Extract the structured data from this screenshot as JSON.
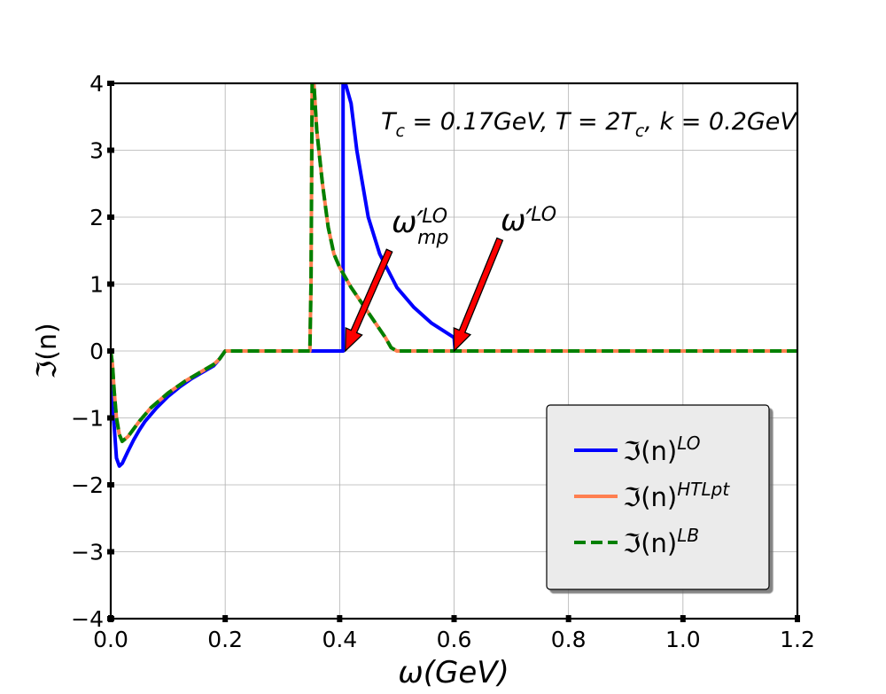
{
  "chart_data": {
    "type": "line",
    "xlabel": "ω(GeV)",
    "ylabel": "ℑ(n)",
    "xlim": [
      0.0,
      1.2
    ],
    "ylim": [
      -4,
      4
    ],
    "grid": true,
    "legend_position": "lower-right",
    "x_ticks": [
      "0.0",
      "0.2",
      "0.4",
      "0.6",
      "0.8",
      "1.0",
      "1.2"
    ],
    "y_ticks": [
      "−4",
      "−3",
      "−2",
      "−1",
      "0",
      "1",
      "2",
      "3",
      "4"
    ],
    "annotation_text": {
      "base": "T",
      "sub": "c",
      "rest1": " = 0.17GeV, T = 2T",
      "sub2": "c",
      "rest2": ", k = 0.2GeV"
    },
    "arrows": [
      {
        "label": "ω′",
        "sup": "LO",
        "sub": "mp",
        "tail": [
          0.487,
          1.5
        ],
        "head": [
          0.41,
          0.0
        ]
      },
      {
        "label": "ω′",
        "sup": "LO",
        "sub": "",
        "tail": [
          0.68,
          1.67
        ],
        "head": [
          0.6,
          0.0
        ]
      }
    ],
    "series": [
      {
        "name_base": "ℑ(n)",
        "name_sup": "LO",
        "color": "#0000ff",
        "dash": "solid",
        "x": [
          0.0,
          0.002,
          0.005,
          0.01,
          0.015,
          0.02,
          0.03,
          0.04,
          0.05,
          0.06,
          0.08,
          0.1,
          0.12,
          0.14,
          0.16,
          0.18,
          0.19,
          0.2,
          0.25,
          0.3,
          0.35,
          0.4,
          0.406,
          0.406,
          0.407,
          0.41,
          0.42,
          0.43,
          0.45,
          0.47,
          0.5,
          0.53,
          0.56,
          0.6,
          0.602,
          0.7,
          0.8,
          0.9,
          1.0,
          1.1,
          1.2
        ],
        "y": [
          0.0,
          -0.3,
          -1.0,
          -1.6,
          -1.72,
          -1.68,
          -1.5,
          -1.33,
          -1.18,
          -1.05,
          -0.85,
          -0.68,
          -0.54,
          -0.42,
          -0.32,
          -0.22,
          -0.12,
          0.0,
          0.0,
          0.0,
          0.0,
          0.0,
          0.0,
          4.0,
          4.0,
          4.0,
          3.7,
          3.0,
          2.0,
          1.45,
          0.95,
          0.65,
          0.42,
          0.2,
          0.0,
          0.0,
          0.0,
          0.0,
          0.0,
          0.0,
          0.0
        ]
      },
      {
        "name_base": "ℑ(n)",
        "name_sup": "HTLpt",
        "color": "#ff7f50",
        "dash": "solid",
        "x": [
          0.0,
          0.003,
          0.006,
          0.01,
          0.015,
          0.02,
          0.03,
          0.05,
          0.07,
          0.1,
          0.13,
          0.16,
          0.18,
          0.19,
          0.2,
          0.25,
          0.3,
          0.348,
          0.35,
          0.352,
          0.355,
          0.36,
          0.365,
          0.37,
          0.38,
          0.39,
          0.4,
          0.42,
          0.44,
          0.46,
          0.48,
          0.49,
          0.5,
          0.6,
          0.8,
          1.0,
          1.2
        ],
        "y": [
          0.0,
          -0.2,
          -0.6,
          -1.0,
          -1.25,
          -1.35,
          -1.28,
          -1.05,
          -0.85,
          -0.63,
          -0.45,
          -0.3,
          -0.2,
          -0.12,
          0.0,
          0.0,
          0.0,
          0.0,
          1.0,
          4.0,
          4.0,
          3.3,
          2.9,
          2.5,
          1.85,
          1.45,
          1.25,
          0.95,
          0.7,
          0.45,
          0.2,
          0.05,
          0.0,
          0.0,
          0.0,
          0.0,
          0.0
        ]
      },
      {
        "name_base": "ℑ(n)",
        "name_sup": "LB",
        "color": "#008000",
        "dash": "dashed",
        "x": [
          0.0,
          0.003,
          0.006,
          0.01,
          0.015,
          0.02,
          0.03,
          0.05,
          0.07,
          0.1,
          0.13,
          0.16,
          0.18,
          0.19,
          0.2,
          0.25,
          0.3,
          0.348,
          0.35,
          0.352,
          0.355,
          0.36,
          0.365,
          0.37,
          0.38,
          0.39,
          0.4,
          0.42,
          0.44,
          0.46,
          0.48,
          0.49,
          0.5,
          0.6,
          0.8,
          1.0,
          1.2
        ],
        "y": [
          0.0,
          -0.2,
          -0.6,
          -1.0,
          -1.25,
          -1.35,
          -1.28,
          -1.05,
          -0.85,
          -0.63,
          -0.45,
          -0.3,
          -0.2,
          -0.12,
          0.0,
          0.0,
          0.0,
          0.0,
          1.0,
          4.0,
          4.0,
          3.3,
          2.9,
          2.5,
          1.85,
          1.45,
          1.25,
          0.95,
          0.7,
          0.45,
          0.2,
          0.05,
          0.0,
          0.0,
          0.0,
          0.0,
          0.0
        ]
      }
    ]
  }
}
